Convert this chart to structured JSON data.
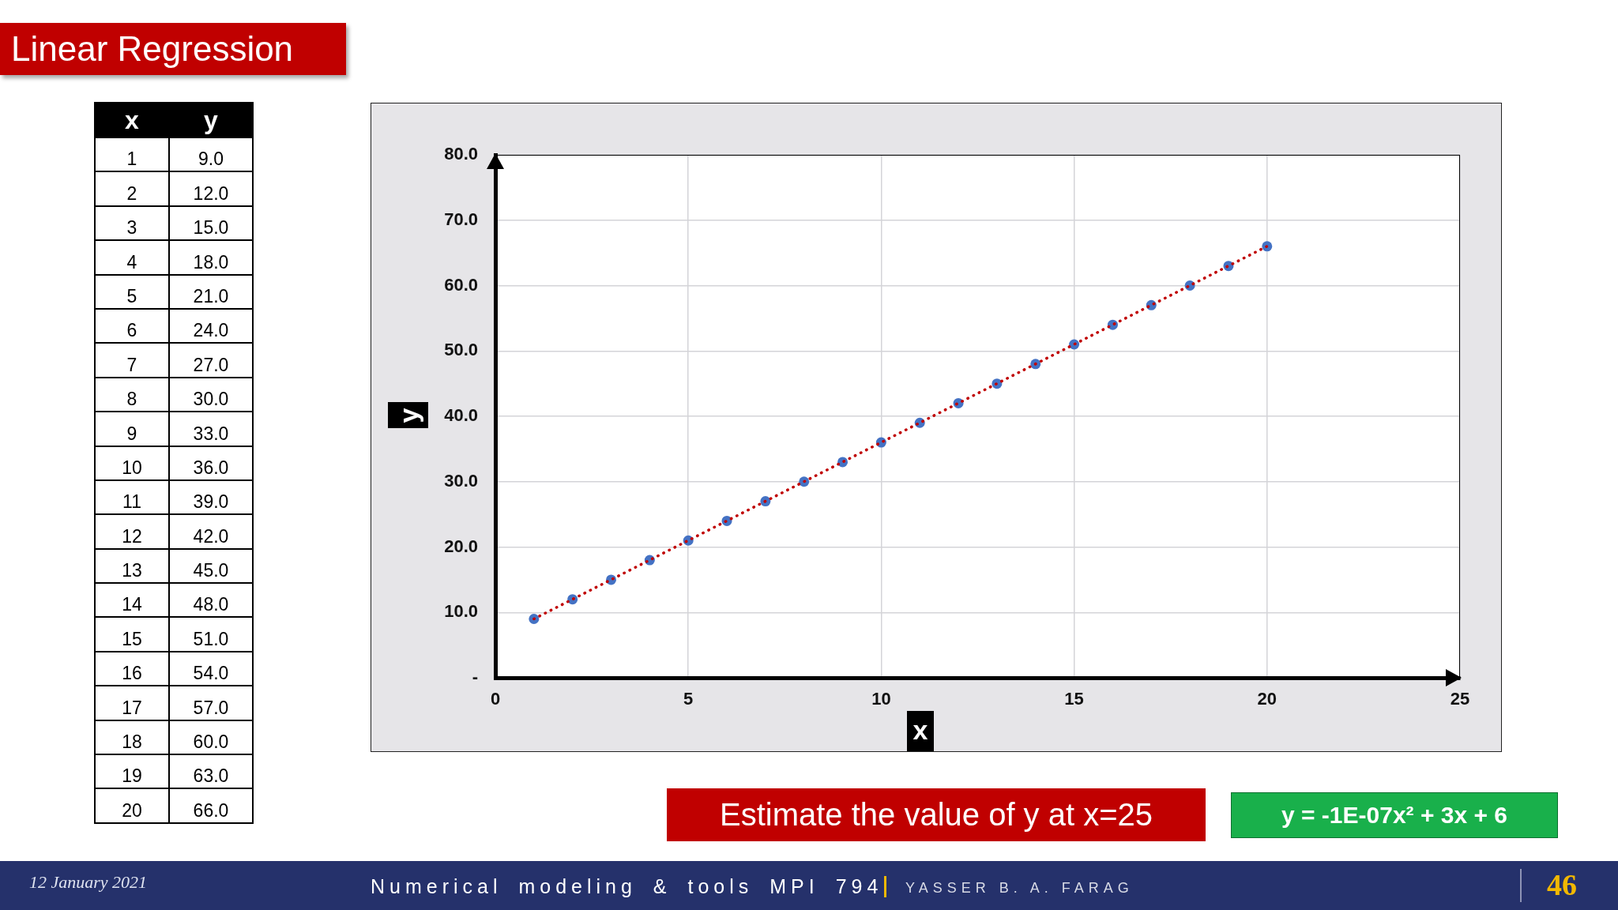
{
  "chart_data": [
    {
      "type": "heatmap",
      "title": "Linear Regression",
      "ylabel": "x",
      "categories": [
        "y"
      ],
      "y_categories": [
        "1",
        "2",
        "3",
        "4",
        "5",
        "6",
        "7",
        "8",
        "9",
        "10",
        "11",
        "12",
        "13",
        "14",
        "15",
        "16",
        "17",
        "18",
        "19",
        "20"
      ],
      "cells": [
        [
          9
        ],
        [
          12
        ],
        [
          15
        ],
        [
          18
        ],
        [
          21
        ],
        [
          24
        ],
        [
          27
        ],
        [
          30
        ],
        [
          33
        ],
        [
          36
        ],
        [
          39
        ],
        [
          42
        ],
        [
          45
        ],
        [
          48
        ],
        [
          51
        ],
        [
          54
        ],
        [
          57
        ],
        [
          60
        ],
        [
          63
        ],
        [
          66
        ]
      ],
      "cell_labels": [
        [
          "9.0"
        ],
        [
          "12.0"
        ],
        [
          "15.0"
        ],
        [
          "18.0"
        ],
        [
          "21.0"
        ],
        [
          "24.0"
        ],
        [
          "27.0"
        ],
        [
          "30.0"
        ],
        [
          "33.0"
        ],
        [
          "36.0"
        ],
        [
          "39.0"
        ],
        [
          "42.0"
        ],
        [
          "45.0"
        ],
        [
          "48.0"
        ],
        [
          "51.0"
        ],
        [
          "54.0"
        ],
        [
          "57.0"
        ],
        [
          "60.0"
        ],
        [
          "63.0"
        ],
        [
          "66.0"
        ]
      ]
    },
    {
      "type": "scatter",
      "xlabel": "x",
      "ylabel": "y",
      "x": [
        1,
        2,
        3,
        4,
        5,
        6,
        7,
        8,
        9,
        10,
        11,
        12,
        13,
        14,
        15,
        16,
        17,
        18,
        19,
        20
      ],
      "series": [
        {
          "type": "scatter",
          "color": "#4472c4",
          "marker": "circle",
          "values": [
            9,
            12,
            15,
            18,
            21,
            24,
            27,
            30,
            33,
            36,
            39,
            42,
            45,
            48,
            51,
            54,
            57,
            60,
            63,
            66
          ]
        },
        {
          "type": "line",
          "color": "#c00000",
          "marker": "none",
          "line_style": "dotted",
          "x": [
            1,
            20
          ],
          "values": [
            9,
            66
          ]
        }
      ],
      "xlim": [
        0,
        25
      ],
      "xticks": [
        0,
        5,
        10,
        15,
        20,
        25
      ],
      "ylim": [
        0,
        80
      ],
      "yticks": [
        {
          "value": 0,
          "label": "-"
        },
        {
          "value": 10,
          "label": "10.0"
        },
        {
          "value": 20,
          "label": "20.0"
        },
        {
          "value": 30,
          "label": "30.0"
        },
        {
          "value": 40,
          "label": "40.0"
        },
        {
          "value": 50,
          "label": "50.0"
        },
        {
          "value": 60,
          "label": "60.0"
        },
        {
          "value": 70,
          "label": "70.0"
        },
        {
          "value": 80,
          "label": "80.0"
        }
      ],
      "grid": true,
      "annotations": [
        "Estimate the value of y at x=25",
        "y = -1E-07x² + 3x + 6",
        "12 January 2021",
        "Numerical modeling & tools MPI 794",
        "YASSER B. A. FARAG",
        "46"
      ]
    }
  ]
}
